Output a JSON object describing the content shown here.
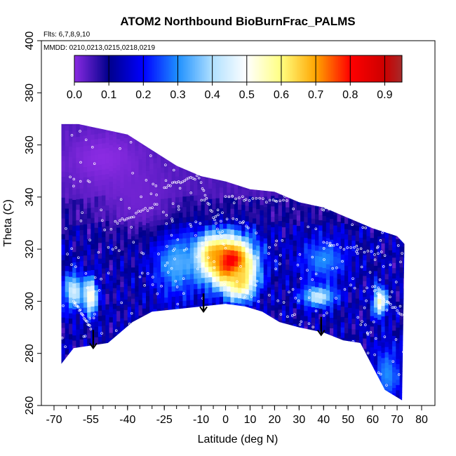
{
  "chart_data": {
    "type": "heatmap",
    "title": "ATOM2 Northbound BioBurnFrac_PALMS",
    "annotation_flights": "Flts: 6,7,8,9,10",
    "annotation_dates": "MMDD: 0210,0213,0215,0218,0219",
    "xlabel": "Latitude (deg N)",
    "ylabel": "Theta (C)",
    "xlim": [
      -70,
      80
    ],
    "ylim": [
      260,
      400
    ],
    "x_ticks": [
      -70,
      -55,
      -40,
      -25,
      -10,
      0,
      10,
      20,
      30,
      40,
      50,
      60,
      70,
      80
    ],
    "y_ticks": [
      260,
      280,
      300,
      320,
      340,
      360,
      380,
      400
    ],
    "colorbar": {
      "range": [
        0,
        0.95
      ],
      "ticks": [
        "0.0",
        "0.1",
        "0.2",
        "0.3",
        "0.4",
        "0.5",
        "0.6",
        "0.7",
        "0.8",
        "0.9"
      ],
      "stops": [
        {
          "v": 0.0,
          "c": "#8a2be2"
        },
        {
          "v": 0.1,
          "c": "#00008b"
        },
        {
          "v": 0.2,
          "c": "#0000ff"
        },
        {
          "v": 0.3,
          "c": "#1e90ff"
        },
        {
          "v": 0.4,
          "c": "#b0e0ff"
        },
        {
          "v": 0.5,
          "c": "#ffffff"
        },
        {
          "v": 0.6,
          "c": "#ffff80"
        },
        {
          "v": 0.7,
          "c": "#ffa500"
        },
        {
          "v": 0.8,
          "c": "#ff0000"
        },
        {
          "v": 0.9,
          "c": "#cc0000"
        },
        {
          "v": 0.95,
          "c": "#a52a2a"
        }
      ]
    },
    "top_boundary": [
      [
        -67,
        368
      ],
      [
        -60,
        368
      ],
      [
        -50,
        366
      ],
      [
        -40,
        364
      ],
      [
        -30,
        358
      ],
      [
        -20,
        352
      ],
      [
        -10,
        348
      ],
      [
        0,
        346
      ],
      [
        10,
        343
      ],
      [
        20,
        342
      ],
      [
        30,
        338
      ],
      [
        40,
        336
      ],
      [
        50,
        332
      ],
      [
        60,
        328
      ],
      [
        70,
        325
      ],
      [
        73,
        322
      ]
    ],
    "bottom_boundary": [
      [
        -67,
        276
      ],
      [
        -62,
        282
      ],
      [
        -55,
        283
      ],
      [
        -48,
        284
      ],
      [
        -38,
        292
      ],
      [
        -30,
        296
      ],
      [
        -20,
        297
      ],
      [
        -10,
        298
      ],
      [
        0,
        299
      ],
      [
        8,
        298
      ],
      [
        15,
        296
      ],
      [
        22,
        292
      ],
      [
        30,
        290
      ],
      [
        40,
        288
      ],
      [
        48,
        285
      ],
      [
        55,
        284
      ],
      [
        60,
        275
      ],
      [
        65,
        266
      ],
      [
        72,
        262
      ]
    ],
    "features": [
      {
        "lat": 2,
        "theta": 315,
        "value": 0.9,
        "sx": 7,
        "sy": 7
      },
      {
        "lat": -6,
        "theta": 318,
        "value": 0.75,
        "sx": 5,
        "sy": 5
      },
      {
        "lat": 6,
        "theta": 308,
        "value": 0.65,
        "sx": 4,
        "sy": 5
      },
      {
        "lat": -62,
        "theta": 304,
        "value": 0.45,
        "sx": 3,
        "sy": 5
      },
      {
        "lat": -55,
        "theta": 302,
        "value": 0.55,
        "sx": 2,
        "sy": 5
      },
      {
        "lat": 63,
        "theta": 300,
        "value": 0.55,
        "sx": 2,
        "sy": 4
      },
      {
        "lat": 38,
        "theta": 302,
        "value": 0.45,
        "sx": 5,
        "sy": 3
      },
      {
        "lat": -20,
        "theta": 316,
        "value": 0.35,
        "sx": 7,
        "sy": 10
      },
      {
        "lat": 40,
        "theta": 316,
        "value": 0.3,
        "sx": 7,
        "sy": 6
      },
      {
        "lat": 66,
        "theta": 272,
        "value": 0.3,
        "sx": 4,
        "sy": 8
      },
      {
        "lat": -35,
        "theta": 338,
        "value": 0.02,
        "sx": 14,
        "sy": 10
      },
      {
        "lat": -50,
        "theta": 355,
        "value": 0.0,
        "sx": 12,
        "sy": 8
      }
    ],
    "markers": [
      {
        "lat": -54,
        "theta_from": 289,
        "theta_to": 282
      },
      {
        "lat": -9,
        "theta_from": 303,
        "theta_to": 296
      },
      {
        "lat": 39,
        "theta_from": 294,
        "theta_to": 287
      }
    ],
    "sample_tracks": [
      {
        "from": [
          -45,
          330
        ],
        "to": [
          -28,
          337
        ]
      },
      {
        "from": [
          -25,
          344
        ],
        "to": [
          -10,
          348
        ]
      },
      {
        "from": [
          -10,
          345
        ],
        "to": [
          0,
          320
        ]
      },
      {
        "from": [
          0,
          340
        ],
        "to": [
          25,
          338
        ]
      },
      {
        "from": [
          20,
          342
        ],
        "to": [
          45,
          335
        ]
      },
      {
        "from": [
          40,
          322
        ],
        "to": [
          65,
          318
        ]
      },
      {
        "from": [
          -62,
          300
        ],
        "to": [
          -55,
          290
        ]
      },
      {
        "from": [
          60,
          305
        ],
        "to": [
          72,
          295
        ]
      }
    ]
  }
}
